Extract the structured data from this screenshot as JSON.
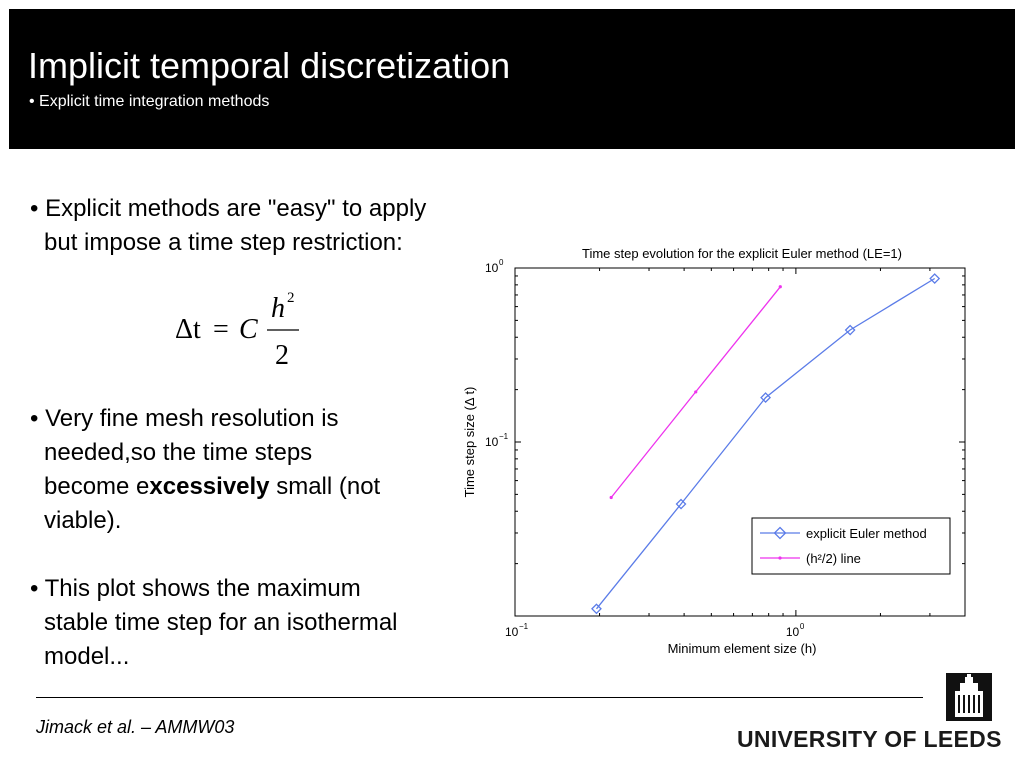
{
  "header": {
    "title": "Implicit temporal discretization",
    "subtitle": "• Explicit time integration methods"
  },
  "bullets": {
    "b1": {
      "l1": "• Explicit methods are \"easy\" to apply",
      "l2": "but impose a time step restriction:"
    },
    "b2": {
      "l1": "• Very fine mesh resolution is",
      "l2": "needed,so the time steps",
      "l3a": "become e",
      "l3b": "xcessively",
      "l3c": " small (not",
      "l4": "viable)."
    },
    "b3": {
      "l1": "• This plot shows the maximum",
      "l2": "stable time step for an isothermal",
      "l3": "model..."
    }
  },
  "formula": {
    "lhs": "Δt",
    "eq": "=",
    "c": "C",
    "num": "h",
    "exp": "2",
    "den": "2"
  },
  "chart_data": {
    "type": "line",
    "title": "Time step evolution for the explicit Euler method (LE=1)",
    "xlabel": "Minimum element size (h)",
    "ylabel": "Time step size (Δ t)",
    "xscale": "log",
    "yscale": "log",
    "xlim": [
      0.1,
      4.0
    ],
    "ylim": [
      0.01,
      1.0
    ],
    "xticks": [
      {
        "base": "10",
        "exp": "−1",
        "value": 0.1
      },
      {
        "base": "10",
        "exp": "0",
        "value": 1.0
      }
    ],
    "yticks": [
      {
        "base": "10",
        "exp": "0",
        "value": 1.0
      },
      {
        "base": "10",
        "exp": "−1",
        "value": 0.1
      }
    ],
    "series": [
      {
        "name": "explicit Euler method",
        "color": "#5b7ce8",
        "marker": "diamond",
        "x": [
          0.195,
          0.39,
          0.78,
          1.56,
          3.12
        ],
        "y": [
          0.011,
          0.044,
          0.18,
          0.44,
          0.87
        ]
      },
      {
        "name": "(h²/2) line",
        "color": "#ee33ee",
        "marker": "dot",
        "x": [
          0.22,
          0.44,
          0.88
        ],
        "y": [
          0.048,
          0.194,
          0.78
        ]
      }
    ],
    "grid": false,
    "legend": {
      "position": "bottom-right"
    }
  },
  "footer": {
    "citation": "Jimack et al. – AMMW03",
    "logo_text": "UNIVERSITY OF LEEDS"
  }
}
